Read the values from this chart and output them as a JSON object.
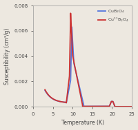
{
  "title": "",
  "xlabel": "Temperature (K)",
  "ylabel": "Susceptibility (cm³/g)",
  "xlim": [
    0,
    25
  ],
  "ylim": [
    0,
    0.008
  ],
  "yticks": [
    0.0,
    0.002,
    0.004,
    0.006,
    0.008
  ],
  "xticks": [
    0,
    5,
    10,
    15,
    20,
    25
  ],
  "legend": [
    "CuB$_2$O$_4$",
    "Cu$^{11}$B$_2$O$_4$"
  ],
  "line_colors": [
    "#5577dd",
    "#cc3333"
  ],
  "background_color": "#ede8e0",
  "figsize": [
    2.01,
    1.89
  ],
  "dpi": 100
}
